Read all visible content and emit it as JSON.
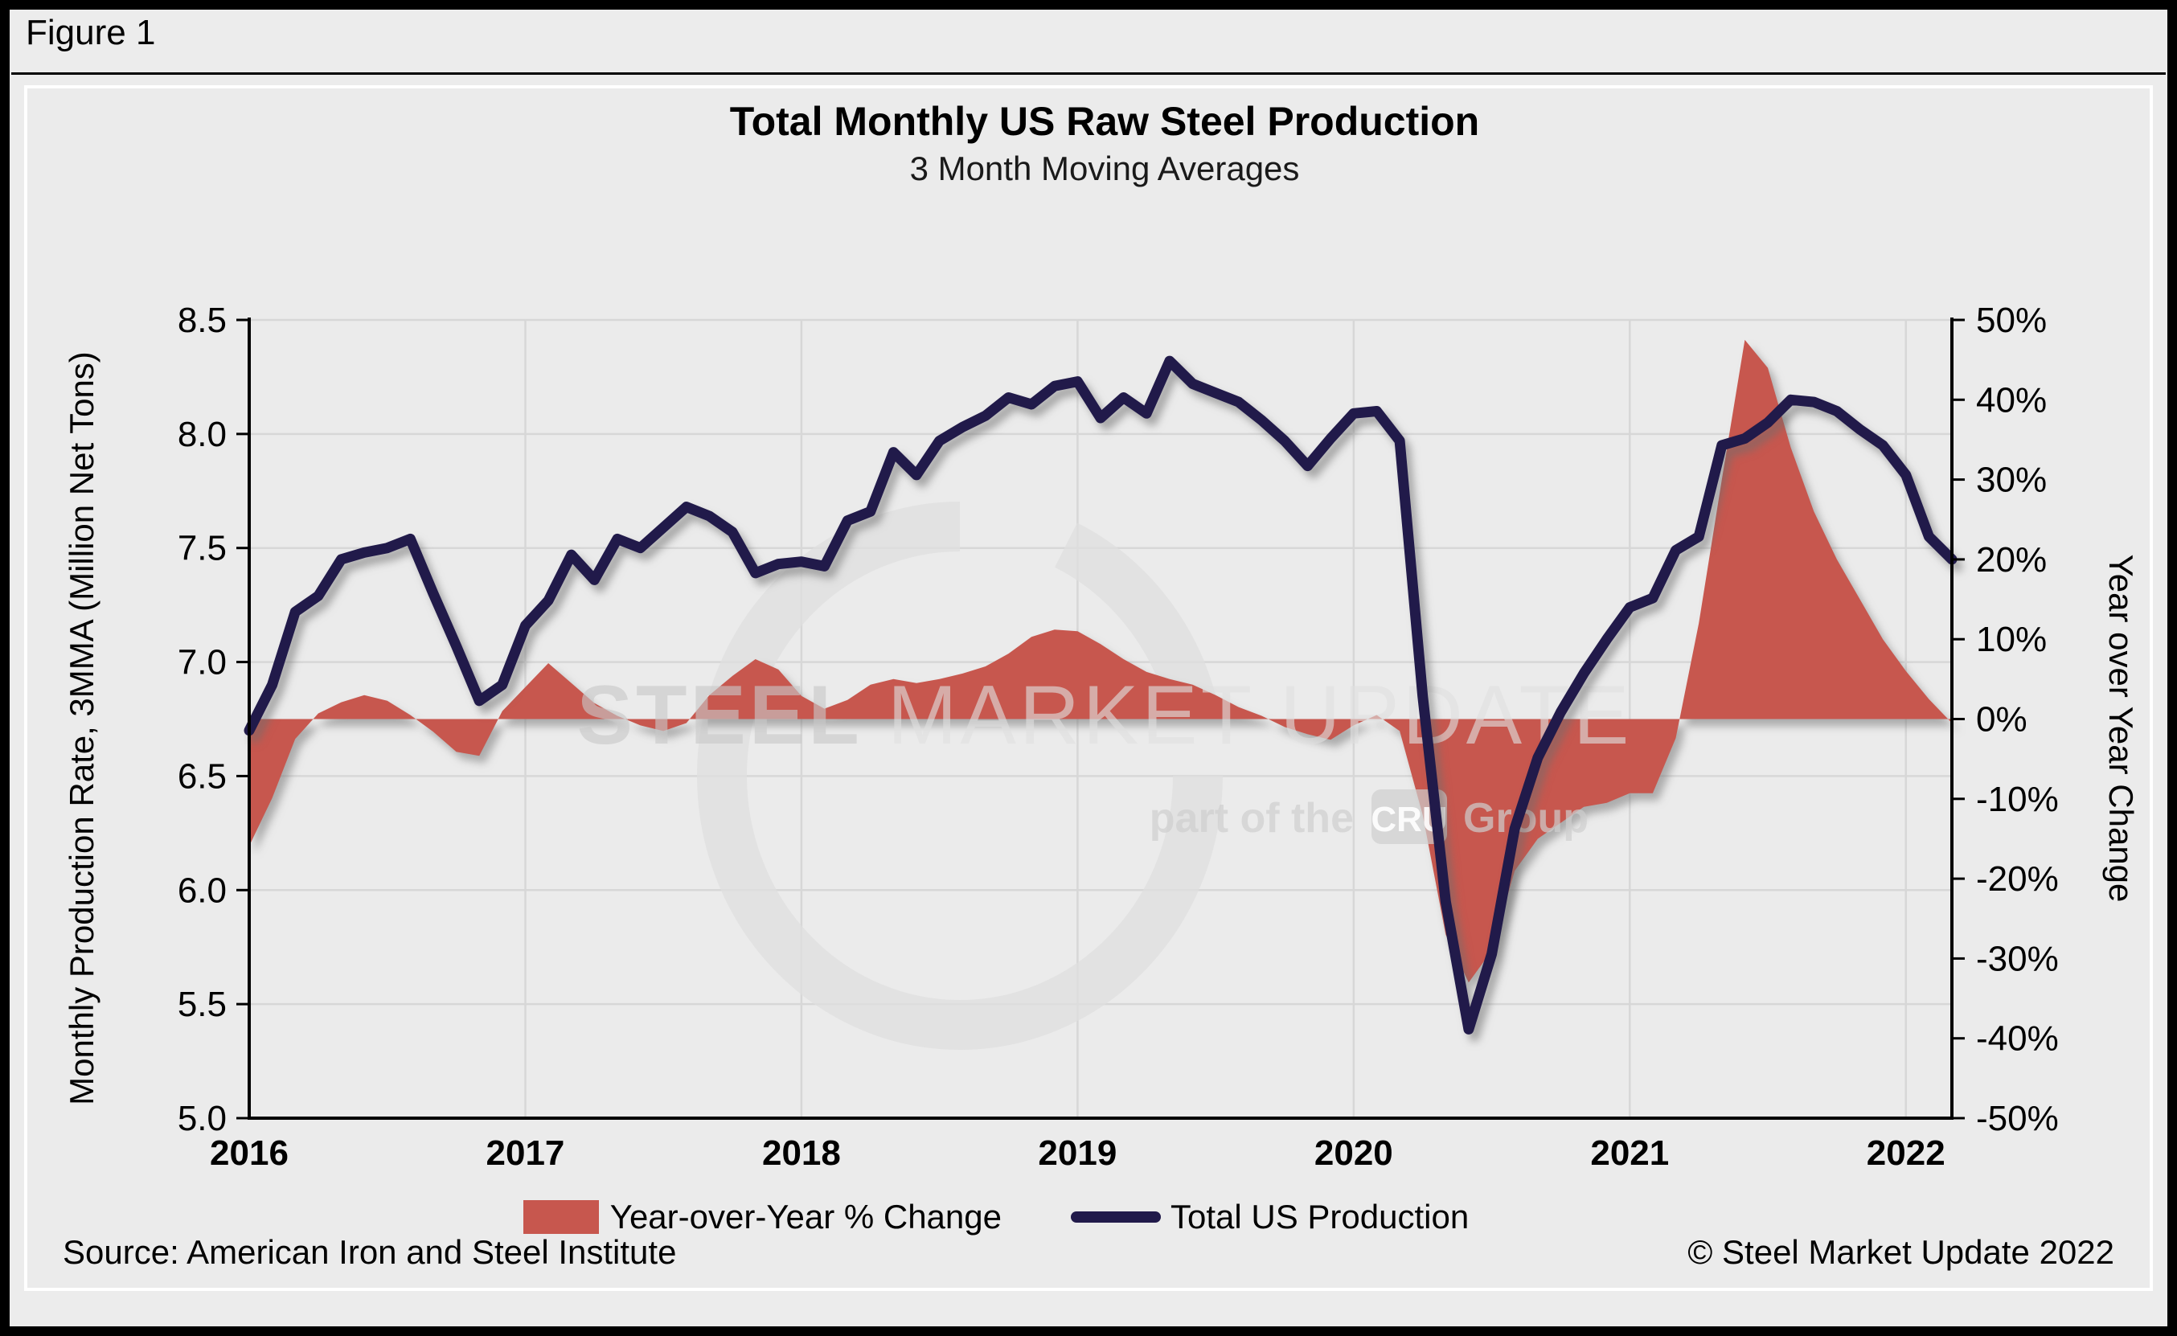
{
  "figure_label": "Figure 1",
  "title": "Total Monthly US Raw Steel Production",
  "subtitle": "3 Month Moving Averages",
  "footer": {
    "source": "Source: American Iron and Steel Institute",
    "copyright": "© Steel Market Update 2022"
  },
  "watermark": {
    "line1_bold": "STEEL ",
    "line1_rest": "MARKET UPDATE",
    "line2_prefix": "part of the",
    "line2_box": "CRU",
    "line2_suffix": "Group"
  },
  "legend": [
    {
      "label": "Year-over-Year % Change",
      "swatch": "area",
      "color": "#c7574e"
    },
    {
      "label": "Total US Production",
      "swatch": "line",
      "color": "#211a4a"
    }
  ],
  "colors": {
    "background": "#ebebeb",
    "outer_background": "#ececec",
    "frame": "#000000",
    "grid": "#d7d7d7",
    "production_line": "#211a4a",
    "yoy_area": "#c7574e",
    "watermark_gray": "#dfdfdf"
  },
  "chart_data": {
    "type": "line+area combo, dual y-axis, monthly series",
    "x": {
      "start": "2016-01",
      "end": "2022-03",
      "tick_labels": [
        "2016",
        "2017",
        "2018",
        "2019",
        "2020",
        "2021",
        "2022"
      ]
    },
    "left_axis": {
      "label": "Monthly Production Rate, 3MMA (Million Net Tons)",
      "min": 5.0,
      "max": 8.5,
      "step": 0.5,
      "tick_values": [
        8.5,
        8.0,
        7.5,
        7.0,
        6.5,
        6.0,
        5.5,
        5.0
      ],
      "tick_labels": [
        "8.5",
        "8.0",
        "7.5",
        "7.0",
        "6.5",
        "6.0",
        "5.5",
        "5.0"
      ]
    },
    "right_axis": {
      "label": "Year over Year Change",
      "min": -50,
      "max": 50,
      "step": 10,
      "tick_values": [
        50,
        40,
        30,
        20,
        10,
        0,
        -10,
        -20,
        -30,
        -40,
        -50
      ],
      "tick_labels": [
        "50%",
        "40%",
        "30%",
        "20%",
        "10%",
        "0%",
        "-10%",
        "-20%",
        "-30%",
        "-40%",
        "-50%"
      ]
    },
    "grid": true,
    "legend_position": "bottom",
    "series": [
      {
        "name": "Year-over-Year % Change",
        "type": "area",
        "axis": "right",
        "color": "#c7574e",
        "baseline": 0,
        "values": [
          -15.9,
          -9.9,
          -2.5,
          0.7,
          2.1,
          3.0,
          2.3,
          0.5,
          -1.6,
          -4.1,
          -4.6,
          1.0,
          4.0,
          7.0,
          4.5,
          2.0,
          0.4,
          -0.8,
          -1.5,
          -0.5,
          3.0,
          5.4,
          7.5,
          6.2,
          2.9,
          1.3,
          2.4,
          4.3,
          5.0,
          4.5,
          5.0,
          5.7,
          6.6,
          8.2,
          10.3,
          11.2,
          11.0,
          9.4,
          7.5,
          5.9,
          5.0,
          4.3,
          3.0,
          1.5,
          0.4,
          -1.0,
          -1.9,
          -2.6,
          -0.8,
          0.5,
          -1.5,
          -12.0,
          -27.0,
          -33.0,
          -29.0,
          -19.0,
          -15.0,
          -13.0,
          -11.0,
          -10.5,
          -9.3,
          -9.3,
          -2.4,
          12.0,
          30.0,
          47.5,
          44.0,
          34.0,
          26.0,
          20.0,
          15.0,
          10.0,
          6.0,
          2.5,
          -0.5
        ]
      },
      {
        "name": "Total US Production",
        "type": "line",
        "axis": "left",
        "color": "#211a4a",
        "values": [
          6.7,
          6.9,
          7.22,
          7.29,
          7.45,
          7.48,
          7.5,
          7.54,
          7.3,
          7.07,
          6.83,
          6.9,
          7.16,
          7.27,
          7.47,
          7.36,
          7.54,
          7.5,
          7.59,
          7.68,
          7.64,
          7.57,
          7.39,
          7.43,
          7.44,
          7.42,
          7.62,
          7.66,
          7.92,
          7.82,
          7.97,
          8.03,
          8.08,
          8.16,
          8.13,
          8.21,
          8.23,
          8.07,
          8.16,
          8.09,
          8.32,
          8.22,
          8.18,
          8.14,
          8.06,
          7.97,
          7.86,
          7.98,
          8.09,
          8.1,
          7.97,
          6.85,
          5.95,
          5.39,
          5.72,
          6.27,
          6.58,
          6.78,
          6.95,
          7.1,
          7.24,
          7.28,
          7.49,
          7.55,
          7.95,
          7.98,
          8.05,
          8.15,
          8.14,
          8.1,
          8.02,
          7.95,
          7.82,
          7.55,
          7.45
        ]
      }
    ]
  }
}
